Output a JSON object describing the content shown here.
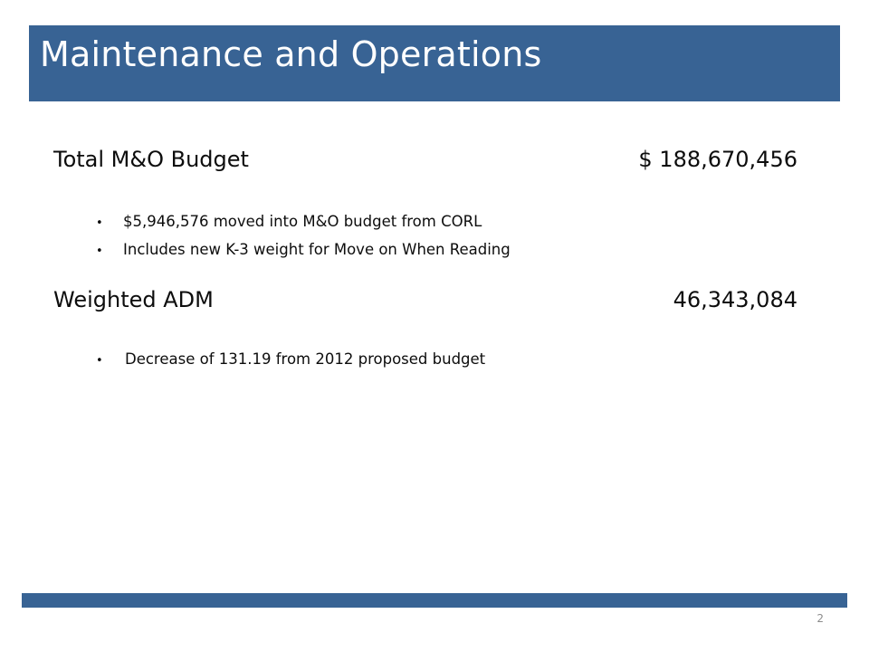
{
  "slide": {
    "title": "Maintenance and Operations",
    "page_number": "2",
    "accent_color": "#386394"
  },
  "items": [
    {
      "label": "Total M&O Budget",
      "value": "$ 188,670,456",
      "bullets": [
        "$5,946,576 moved into M&O budget from CORL",
        "Includes new K-3 weight for Move on When Reading"
      ]
    },
    {
      "label": "Weighted ADM",
      "value": "46,343,084",
      "bullets": [
        "Decrease of 131.19 from 2012 proposed budget"
      ]
    }
  ]
}
